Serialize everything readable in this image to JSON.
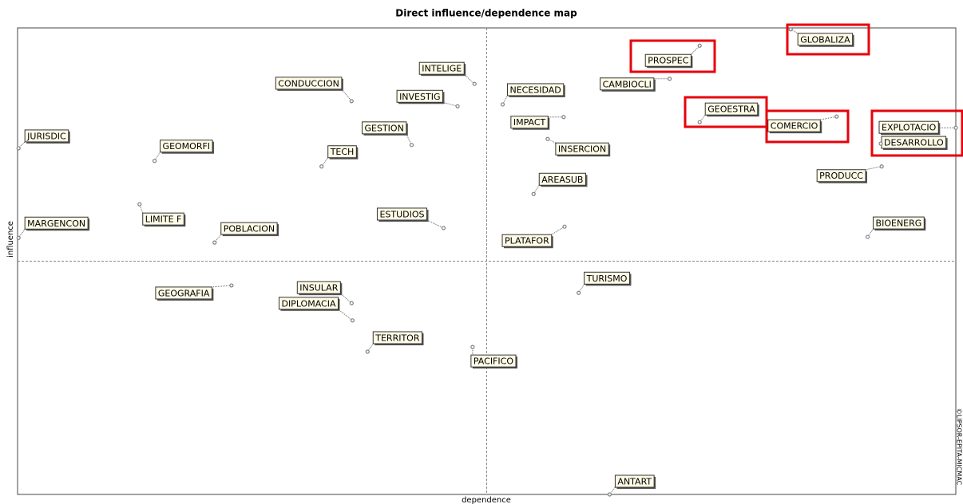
{
  "chart_data": {
    "type": "scatter",
    "title": "Direct influence/dependence map",
    "x_label": "dependence",
    "y_label": "influence",
    "watermark": "©LIPSOR-EPITA-MICMAC",
    "xlim": [
      0,
      100
    ],
    "ylim": [
      0,
      100
    ],
    "labels": [
      "GLOBALIZA",
      "PROSPEC",
      "CAMBIOCLI",
      "NECESIDAD",
      "INTELIGE",
      "CONDUCCION",
      "INVESTIG",
      "GEOESTRA",
      "COMERCIO",
      "EXPLOTACIO",
      "DESARROLLO",
      "IMPACT",
      "INSERCION",
      "GESTION",
      "JURISDIC",
      "GEOMORFI",
      "TECH",
      "PRODUCC",
      "AREASUB",
      "LIMITE F",
      "ESTUDIOS",
      "MARGENCON",
      "POBLACION",
      "BIOENERG",
      "PLATAFOR",
      "TURISMO",
      "GEOGRAFIA",
      "INSULAR",
      "DIPLOMACIA",
      "TERRITOR",
      "PACIFICO",
      "ANTART"
    ],
    "x": [
      82.4,
      72.7,
      69.5,
      51.7,
      48.7,
      35.6,
      46.9,
      72.7,
      87.3,
      100,
      92.0,
      58.2,
      56.5,
      42.0,
      0.1,
      14.6,
      32.4,
      92.1,
      55.0,
      13.0,
      45.4,
      0.1,
      21.0,
      90.6,
      58.3,
      59.8,
      22.8,
      35.6,
      35.7,
      37.3,
      48.5,
      63.1
    ],
    "values": [
      99.7,
      96.2,
      89.1,
      83.6,
      88.0,
      84.3,
      83.2,
      79.8,
      81.0,
      78.6,
      75.2,
      80.9,
      76.2,
      74.9,
      74.2,
      71.5,
      70.3,
      70.3,
      64.4,
      62.2,
      57.1,
      55.0,
      54.0,
      55.2,
      57.4,
      43.2,
      44.8,
      41.0,
      37.3,
      30.6,
      31.6,
      0
    ],
    "color": "#808080",
    "label_fill": "#fffbe6",
    "highlight_color": "#e8000b"
  }
}
